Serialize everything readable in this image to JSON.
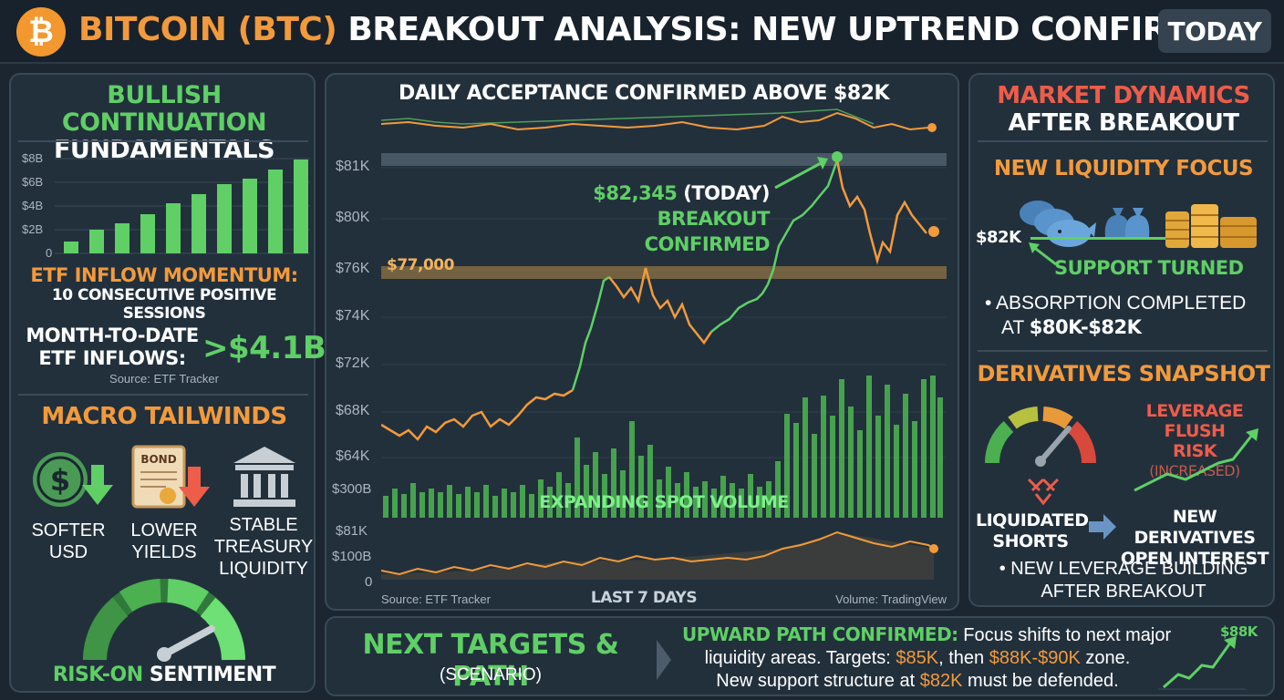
{
  "header": {
    "title_btc": "BITCOIN (BTC)",
    "title_rest": "BREAKOUT ANALYSIS: NEW UPTREND CONFIRMED",
    "today_button": "TODAY",
    "logo_icon": "bitcoin-logo-icon",
    "logo_symbol": "₿"
  },
  "left_panel": {
    "title_line1": "BULLISH CONTINUATION",
    "title_line2": "FUNDAMENTALS",
    "etf_chart_yticks": [
      "$8B",
      "$6B",
      "$4B",
      "$2B",
      "0"
    ],
    "etf_caption_line1": "ETF INFLOW MOMENTUM:",
    "etf_caption_line2": "10 CONSECUTIVE POSITIVE SESSIONS",
    "mtd_label_line1": "MONTH-TO-DATE",
    "mtd_label_line2": "ETF INFLOWS:",
    "mtd_value": ">$4.1B",
    "source": "Source: ETF Tracker",
    "macro_title": "MACRO TAILWINDS",
    "macro_items": [
      {
        "icon": "dollar-down-icon",
        "line1": "SOFTER",
        "line2": "USD",
        "line3": ""
      },
      {
        "icon": "bond-down-icon",
        "line1": "LOWER",
        "line2": "YIELDS",
        "line3": ""
      },
      {
        "icon": "bank-icon",
        "line1": "STABLE",
        "line2": "TREASURY",
        "line3": "LIQUIDITY"
      }
    ],
    "bond_label": "BOND",
    "dollar_symbol": "$",
    "gauge_icon": "sentiment-gauge-icon",
    "sentiment_a": "RISK-ON",
    "sentiment_b": "SENTIMENT"
  },
  "center_panel": {
    "title": "DAILY ACCEPTANCE CONFIRMED ABOVE $82K",
    "price_ticks": [
      "$81K",
      "$80K",
      "$76K",
      "$74K",
      "$72K",
      "$68K",
      "$64K"
    ],
    "support_label": "$77,000",
    "callout_price": "$82,345",
    "callout_today": " (TODAY)",
    "callout_text": "BREAKOUT CONFIRMED",
    "volume_tick": "$300B",
    "volume_label": "EXPANDING SPOT VOLUME",
    "mini_ticks": [
      "$81K",
      "$100B",
      "0"
    ],
    "source_left": "Source: ETF Tracker",
    "footer_center": "LAST 7 DAYS",
    "source_right": "Volume: TradingView"
  },
  "right_panel": {
    "title_line1": "MARKET DYNAMICS",
    "title_line2": "AFTER BREAKOUT",
    "liquidity_title": "NEW LIQUIDITY FOCUS",
    "level_label": "$82K",
    "whale_icon": "whales-icon",
    "moneybag_icon": "money-bags-icon",
    "coins_icon": "coin-stacks-icon",
    "support_turned": "SUPPORT TURNED",
    "absorption_a": "• ABSORPTION COMPLETED",
    "absorption_b_prefix": "AT ",
    "absorption_b_value": "$80K-$82K",
    "derivatives_title": "DERIVATIVES SNAPSHOT",
    "gauge_icon": "leverage-gauge-icon",
    "leverage_line1": "LEVERAGE FLUSH",
    "leverage_line2": "RISK",
    "leverage_line3": "(INCREASED)",
    "liquidated_line1": "LIQUIDATED",
    "liquidated_line2": "SHORTS",
    "new_oi_line1": "NEW DERIVATIVES",
    "new_oi_line2": "OPEN INTEREST",
    "leverage_bullet_line1": "• NEW LEVERAGE BUILDING",
    "leverage_bullet_line2": "AFTER BREAKOUT"
  },
  "bottom_panel": {
    "title": "NEXT TARGETS & PATH",
    "subtitle": "(SCENARIO)",
    "path_label": "UPWARD PATH CONFIRMED:",
    "path_text_a": " Focus shifts to next major",
    "line2_a": "liquidity areas. Targets: ",
    "target1": "$85K",
    "line2_b": ", then ",
    "target2": "$88K-$90K",
    "line2_c": " zone.",
    "line3_a": "New support structure at ",
    "support": "$82K",
    "line3_b": " must be defended.",
    "target_chart_label": "$88K"
  },
  "colors": {
    "bg": "#1b2631",
    "green": "#5fcf66",
    "orange": "#f29a3c",
    "red": "#ee5c4a",
    "panel": "#22303c"
  }
}
